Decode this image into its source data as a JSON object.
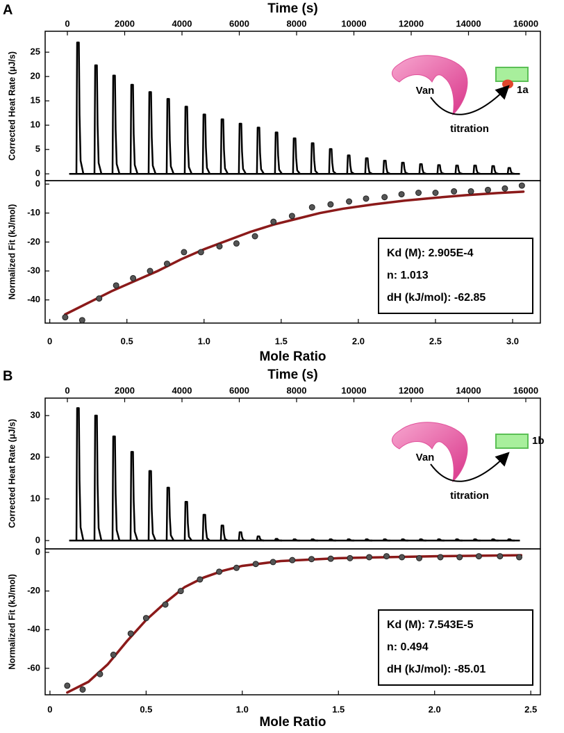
{
  "chart_data": [
    {
      "panel": "A",
      "type": "impulse",
      "x_label": "Time (s)",
      "y_label": "Corrected Heat Rate (μJ/s)",
      "xlim": [
        -776,
        16509
      ],
      "xticks": [
        0,
        2000,
        4000,
        6000,
        8000,
        10000,
        12000,
        14000,
        16000
      ],
      "ylim": [
        -1.4,
        29.3
      ],
      "yticks": [
        0,
        5,
        10,
        15,
        20,
        25
      ],
      "color": "#000000",
      "x": [
        364,
        994,
        1624,
        2254,
        2884,
        3514,
        4144,
        4774,
        5404,
        6034,
        6664,
        7294,
        7924,
        8554,
        9184,
        9814,
        10444,
        11074,
        11704,
        12334,
        12964,
        13594,
        14224,
        14854,
        15418
      ],
      "values": [
        27,
        22.3,
        20.2,
        18.3,
        16.8,
        15.4,
        13.8,
        12.2,
        11.2,
        10.3,
        9.5,
        8.5,
        7.3,
        6.3,
        5.1,
        3.8,
        3.2,
        2.7,
        2.3,
        2.0,
        1.8,
        1.7,
        1.7,
        1.6,
        1.2
      ],
      "inset": {
        "host": "Van",
        "ligand": "1a",
        "arrow": "titration"
      },
      "inset_dot": true
    },
    {
      "type": "scatter",
      "x_label": "Mole Ratio",
      "y_label": "Normalized Fit (kJ/mol)",
      "xlim": [
        -0.03,
        3.18
      ],
      "xticks": [
        0,
        0.5,
        {
          "value": 1,
          "label": "1.0"
        },
        1.5,
        {
          "value": 2,
          "label": "2.0"
        },
        2.5,
        {
          "value": 3,
          "label": "3.0"
        }
      ],
      "ylim": [
        -48,
        1.2
      ],
      "yticks": [
        0,
        -10,
        -20,
        -30,
        -40
      ],
      "series": [
        {
          "style": "points",
          "color": "#555555",
          "x": [
            0.1,
            0.21,
            0.32,
            0.43,
            0.54,
            0.65,
            0.76,
            0.87,
            0.98,
            1.1,
            1.21,
            1.33,
            1.45,
            1.57,
            1.7,
            1.82,
            1.94,
            2.05,
            2.17,
            2.28,
            2.39,
            2.5,
            2.62,
            2.73,
            2.84,
            2.95,
            3.06
          ],
          "values": [
            -46,
            -47,
            -39.5,
            -35,
            -32.5,
            -30,
            -27.5,
            -23.5,
            -23.5,
            -21.5,
            -20.5,
            -18,
            -13,
            -11,
            -8,
            -7,
            -6,
            -5,
            -4.5,
            -3.5,
            -3,
            -3,
            -2.5,
            -2.5,
            -2,
            -1.5,
            -0.5
          ]
        },
        {
          "style": "line",
          "color": "#8b1a1a",
          "x": [
            0.1,
            0.25,
            0.4,
            0.55,
            0.7,
            0.85,
            1.0,
            1.15,
            1.3,
            1.45,
            1.6,
            1.75,
            1.9,
            2.1,
            2.3,
            2.5,
            2.7,
            2.9,
            3.07
          ],
          "values": [
            -45,
            -41,
            -37,
            -33.5,
            -30,
            -26,
            -22.5,
            -19.5,
            -16.5,
            -14,
            -12,
            -10,
            -8.5,
            -7,
            -5.7,
            -4.7,
            -3.8,
            -3.1,
            -2.6
          ]
        }
      ],
      "annotations": [
        "Kd (M): 2.905E-4",
        "n: 1.013",
        "dH (kJ/mol): -62.85"
      ]
    },
    {
      "panel": "B",
      "type": "impulse",
      "x_label": "Time (s)",
      "y_label": "Corrected Heat Rate (μJ/s)",
      "xlim": [
        -776,
        16509
      ],
      "xticks": [
        0,
        2000,
        4000,
        6000,
        8000,
        10000,
        12000,
        14000,
        16000
      ],
      "ylim": [
        -2,
        34.2
      ],
      "yticks": [
        0,
        10,
        20,
        30
      ],
      "color": "#000000",
      "x": [
        364,
        994,
        1624,
        2254,
        2884,
        3514,
        4144,
        4774,
        5404,
        6034,
        6664,
        7294,
        7924,
        8554,
        9184,
        9814,
        10444,
        11074,
        11704,
        12334,
        12964,
        13594,
        14224,
        14854,
        15418
      ],
      "values": [
        31.8,
        30,
        25,
        21.3,
        16.7,
        12.7,
        9.3,
        6.2,
        3.6,
        2,
        1,
        0.4,
        0.3,
        0.3,
        0.3,
        0.3,
        0.3,
        0.3,
        0.3,
        0.3,
        0.3,
        0.3,
        0.3,
        0.3,
        0.3
      ],
      "inset": {
        "host": "Van",
        "ligand": "1b",
        "arrow": "titration"
      },
      "inset_dot": false
    },
    {
      "type": "scatter",
      "x_label": "Mole Ratio",
      "y_label": "Normalized Fit (kJ/mol)",
      "xlim": [
        -0.025,
        2.55
      ],
      "xticks": [
        0,
        0.5,
        {
          "value": 1,
          "label": "1.0"
        },
        1.5,
        {
          "value": 2,
          "label": "2.0"
        },
        2.5
      ],
      "ylim": [
        -73.7,
        1.8
      ],
      "yticks": [
        0,
        -20,
        -40,
        -60
      ],
      "series": [
        {
          "style": "points",
          "color": "#555555",
          "x": [
            0.09,
            0.17,
            0.26,
            0.33,
            0.42,
            0.5,
            0.6,
            0.68,
            0.78,
            0.88,
            0.97,
            1.07,
            1.16,
            1.26,
            1.36,
            1.46,
            1.56,
            1.66,
            1.75,
            1.83,
            1.92,
            2.03,
            2.13,
            2.23,
            2.34,
            2.44
          ],
          "values": [
            -69,
            -71,
            -63,
            -53,
            -42,
            -34,
            -27,
            -20,
            -14,
            -10,
            -8,
            -6,
            -5,
            -4,
            -3.5,
            -3.3,
            -3,
            -2.5,
            -2,
            -2.5,
            -3,
            -2.5,
            -2.5,
            -2,
            -2,
            -2.5
          ]
        },
        {
          "style": "line",
          "color": "#8b1a1a",
          "x": [
            0.09,
            0.2,
            0.3,
            0.4,
            0.5,
            0.6,
            0.7,
            0.8,
            0.9,
            1.0,
            1.2,
            1.5,
            2.0,
            2.45
          ],
          "values": [
            -72.5,
            -67,
            -58,
            -46,
            -35,
            -26,
            -18,
            -13,
            -9.5,
            -7,
            -4.5,
            -3,
            -2,
            -1.5
          ]
        }
      ],
      "annotations": [
        "Kd (M): 7.543E-5",
        "n: 0.494",
        "dH (kJ/mol): -85.01"
      ]
    }
  ]
}
